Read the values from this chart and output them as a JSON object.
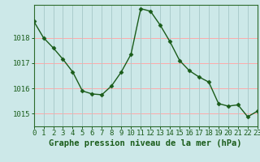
{
  "x": [
    0,
    1,
    2,
    3,
    4,
    5,
    6,
    7,
    8,
    9,
    10,
    11,
    12,
    13,
    14,
    15,
    16,
    17,
    18,
    19,
    20,
    21,
    22,
    23
  ],
  "y": [
    1018.65,
    1018.0,
    1017.6,
    1017.15,
    1016.65,
    1015.9,
    1015.78,
    1015.75,
    1016.1,
    1016.65,
    1017.35,
    1019.15,
    1019.05,
    1018.5,
    1017.85,
    1017.1,
    1016.7,
    1016.45,
    1016.25,
    1015.4,
    1015.3,
    1015.35,
    1014.88,
    1015.1
  ],
  "xlim": [
    0,
    23
  ],
  "ylim": [
    1014.5,
    1019.3
  ],
  "yticks": [
    1015,
    1016,
    1017,
    1018
  ],
  "xticks": [
    0,
    1,
    2,
    3,
    4,
    5,
    6,
    7,
    8,
    9,
    10,
    11,
    12,
    13,
    14,
    15,
    16,
    17,
    18,
    19,
    20,
    21,
    22,
    23
  ],
  "line_color": "#1a5c1a",
  "marker": "D",
  "marker_size": 2.5,
  "bg_color": "#cce8e8",
  "hgrid_color": "#ffaaaa",
  "vgrid_color": "#aacccc",
  "xlabel": "Graphe pression niveau de la mer (hPa)",
  "xlabel_color": "#1a5c1a",
  "xlabel_fontsize": 7.5,
  "tick_fontsize": 6.5,
  "tick_color": "#1a5c1a",
  "border_color": "#2d6b2d",
  "line_width": 1.0
}
